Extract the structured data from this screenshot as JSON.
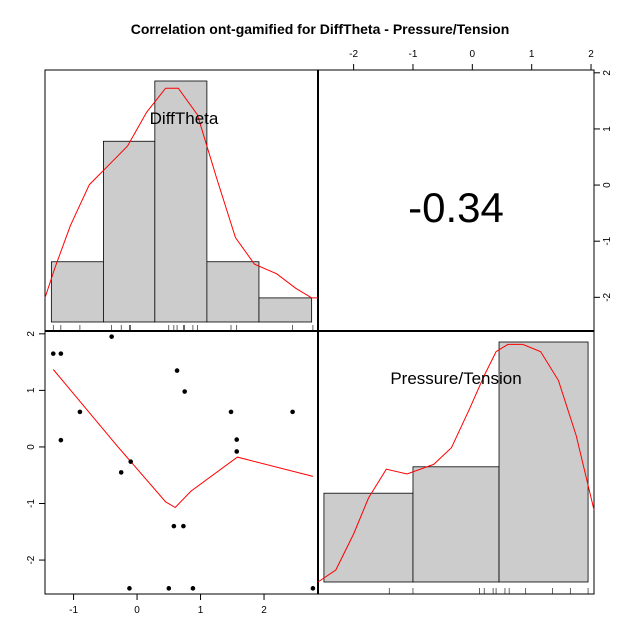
{
  "title": "Correlation ont-gamified for DiffTheta - Pressure/Tension",
  "chart_data": {
    "type": "scatter",
    "title": "Correlation ont-gamified for DiffTheta - Pressure/Tension",
    "variables": [
      "DiffTheta",
      "Pressure/Tension"
    ],
    "correlation_label": "-0.34",
    "x_range": [
      -1.45,
      2.85
    ],
    "y_range": [
      -2.6,
      2.05
    ],
    "x_ticks": [
      -1,
      0,
      1,
      2
    ],
    "y_ticks": [
      -2,
      -1,
      0,
      1,
      2
    ],
    "x_tick_labels": [
      "-1",
      "0",
      "1",
      "2"
    ],
    "y_tick_labels": [
      "-2",
      "-1",
      "0",
      "1",
      "2"
    ],
    "scatter_points": [
      {
        "x": -1.32,
        "y": 1.65
      },
      {
        "x": -1.2,
        "y": 1.65
      },
      {
        "x": -1.2,
        "y": 0.12
      },
      {
        "x": -0.9,
        "y": 0.62
      },
      {
        "x": -0.4,
        "y": 1.95
      },
      {
        "x": -0.25,
        "y": -0.45
      },
      {
        "x": -0.12,
        "y": -2.5
      },
      {
        "x": -0.1,
        "y": -0.26
      },
      {
        "x": 0.5,
        "y": -2.5
      },
      {
        "x": 0.58,
        "y": -1.4
      },
      {
        "x": 0.63,
        "y": 1.35
      },
      {
        "x": 0.73,
        "y": -1.4
      },
      {
        "x": 0.75,
        "y": 0.98
      },
      {
        "x": 0.88,
        "y": -2.5
      },
      {
        "x": 1.48,
        "y": 0.62
      },
      {
        "x": 1.57,
        "y": 0.13
      },
      {
        "x": 1.57,
        "y": -0.08
      },
      {
        "x": 2.45,
        "y": 0.62
      },
      {
        "x": 2.77,
        "y": -2.5
      }
    ],
    "smooth_line": [
      {
        "x": -1.32,
        "y": 1.37
      },
      {
        "x": -0.3,
        "y": 0.0
      },
      {
        "x": 0.45,
        "y": -0.97
      },
      {
        "x": 0.6,
        "y": -1.07
      },
      {
        "x": 0.85,
        "y": -0.78
      },
      {
        "x": 1.58,
        "y": -0.18
      },
      {
        "x": 2.77,
        "y": -0.52
      }
    ],
    "diff_theta_hist": {
      "bins": [
        -1.35,
        -0.53,
        0.28,
        1.1,
        1.92,
        2.75
      ],
      "heights": [
        0.25,
        0.75,
        1.0,
        0.25,
        0.1
      ]
    },
    "diff_theta_density": [
      {
        "x": -1.45,
        "y": 0.1
      },
      {
        "x": -1.3,
        "y": 0.22
      },
      {
        "x": -1.05,
        "y": 0.4
      },
      {
        "x": -0.75,
        "y": 0.57
      },
      {
        "x": -0.45,
        "y": 0.65
      },
      {
        "x": -0.15,
        "y": 0.73
      },
      {
        "x": 0.15,
        "y": 0.87
      },
      {
        "x": 0.45,
        "y": 0.97
      },
      {
        "x": 0.65,
        "y": 0.97
      },
      {
        "x": 0.95,
        "y": 0.86
      },
      {
        "x": 1.25,
        "y": 0.6
      },
      {
        "x": 1.55,
        "y": 0.35
      },
      {
        "x": 1.85,
        "y": 0.24
      },
      {
        "x": 2.2,
        "y": 0.2
      },
      {
        "x": 2.5,
        "y": 0.14
      },
      {
        "x": 2.75,
        "y": 0.1
      },
      {
        "x": 2.85,
        "y": 0.1
      }
    ],
    "diff_theta_rug": [
      -1.32,
      -1.2,
      -0.9,
      -0.4,
      -0.25,
      -0.12,
      -0.1,
      0.5,
      0.58,
      0.63,
      0.73,
      0.75,
      0.88,
      0.95,
      1.48,
      1.57,
      2.45,
      2.77
    ],
    "pressure_tension_ticks": [
      -2,
      -1,
      0,
      1,
      2
    ],
    "pressure_tension_tick_labels": [
      "-2",
      "-1",
      "0",
      "1",
      "2"
    ],
    "pressure_tension_range": [
      -2.6,
      2.05
    ],
    "pressure_tension_hist": {
      "bins": [
        -2.5,
        -1.0,
        0.45,
        1.95
      ],
      "heights": [
        0.37,
        0.48,
        1.0
      ]
    },
    "pressure_tension_density": [
      {
        "x": -2.6,
        "y": 0.0
      },
      {
        "x": -2.3,
        "y": 0.05
      },
      {
        "x": -2.0,
        "y": 0.2
      },
      {
        "x": -1.75,
        "y": 0.35
      },
      {
        "x": -1.45,
        "y": 0.47
      },
      {
        "x": -1.1,
        "y": 0.45
      },
      {
        "x": -0.65,
        "y": 0.49
      },
      {
        "x": -0.35,
        "y": 0.56
      },
      {
        "x": -0.05,
        "y": 0.72
      },
      {
        "x": 0.2,
        "y": 0.86
      },
      {
        "x": 0.4,
        "y": 0.96
      },
      {
        "x": 0.6,
        "y": 0.99
      },
      {
        "x": 0.85,
        "y": 0.99
      },
      {
        "x": 1.15,
        "y": 0.96
      },
      {
        "x": 1.45,
        "y": 0.84
      },
      {
        "x": 1.75,
        "y": 0.61
      },
      {
        "x": 2.05,
        "y": 0.3
      }
    ],
    "pressure_tension_rug": [
      -1.4,
      -1.0,
      0.12,
      0.2,
      0.35,
      0.4,
      0.55,
      0.62,
      0.9,
      1.35,
      1.65,
      1.95
    ],
    "grid": false
  }
}
